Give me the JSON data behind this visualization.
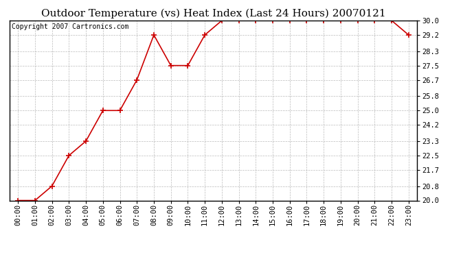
{
  "title": "Outdoor Temperature (vs) Heat Index (Last 24 Hours) 20070121",
  "copyright_text": "Copyright 2007 Cartronics.com",
  "x_labels": [
    "00:00",
    "01:00",
    "02:00",
    "03:00",
    "04:00",
    "05:00",
    "06:00",
    "07:00",
    "08:00",
    "09:00",
    "10:00",
    "11:00",
    "12:00",
    "13:00",
    "14:00",
    "15:00",
    "16:00",
    "17:00",
    "18:00",
    "19:00",
    "20:00",
    "21:00",
    "22:00",
    "23:00"
  ],
  "y_values": [
    20.0,
    20.0,
    20.8,
    22.5,
    23.3,
    25.0,
    25.0,
    26.7,
    29.2,
    27.5,
    27.5,
    29.2,
    30.0,
    30.0,
    30.0,
    30.0,
    30.0,
    30.0,
    30.0,
    30.0,
    30.0,
    30.0,
    30.0,
    29.2
  ],
  "ylim": [
    20.0,
    30.0
  ],
  "yticks": [
    20.0,
    20.8,
    21.7,
    22.5,
    23.3,
    24.2,
    25.0,
    25.8,
    26.7,
    27.5,
    28.3,
    29.2,
    30.0
  ],
  "line_color": "#cc0000",
  "marker": "+",
  "marker_size": 6,
  "marker_linewidth": 1.2,
  "line_width": 1.2,
  "background_color": "#ffffff",
  "plot_bg_color": "#ffffff",
  "grid_color": "#aaaaaa",
  "title_fontsize": 11,
  "axis_fontsize": 7.5,
  "copyright_fontsize": 7,
  "fig_width": 6.9,
  "fig_height": 3.75,
  "dpi": 100
}
